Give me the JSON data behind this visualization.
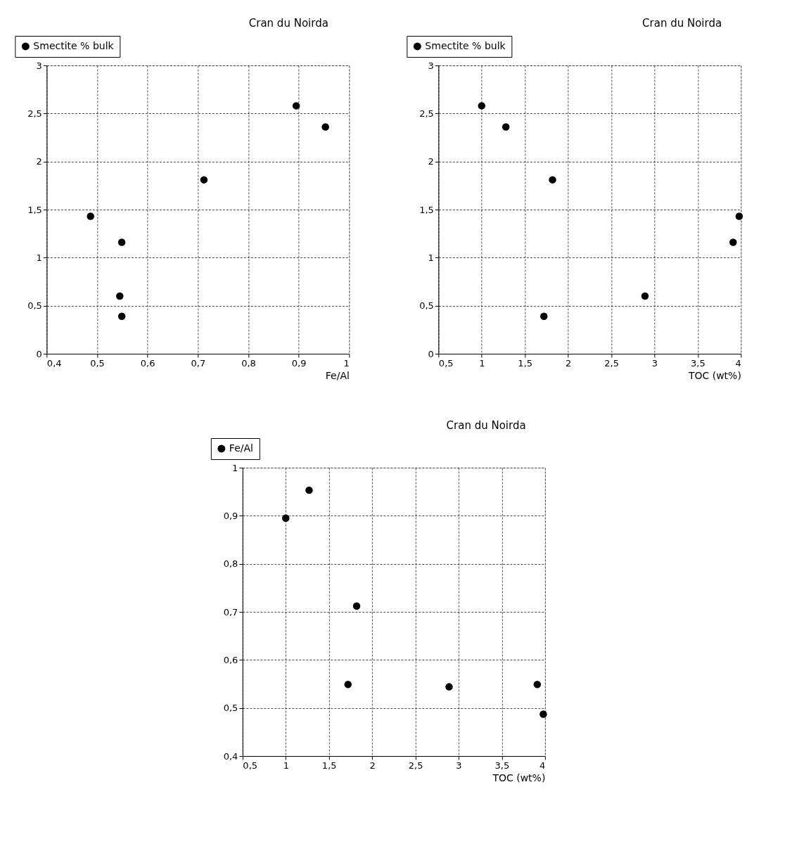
{
  "chart_data": [
    {
      "type": "scatter",
      "title": "Cran du Noirda",
      "xlabel": "Fe/Al",
      "xlim": [
        0.4,
        1
      ],
      "xticks": [
        {
          "value": 0.4,
          "label": "0,4"
        },
        {
          "value": 0.5,
          "label": "0,5"
        },
        {
          "value": 0.6,
          "label": "0,6"
        },
        {
          "value": 0.7,
          "label": "0,7"
        },
        {
          "value": 0.8,
          "label": "0,8"
        },
        {
          "value": 0.9,
          "label": "0,9"
        },
        1
      ],
      "ylim": [
        0,
        3
      ],
      "yticks": [
        0,
        {
          "value": 0.5,
          "label": "0,5"
        },
        1,
        {
          "value": 1.5,
          "label": "1,5"
        },
        2,
        {
          "value": 2.5,
          "label": "2,5"
        },
        3
      ],
      "grid": true,
      "legend": "top left",
      "marker": "circle",
      "series": [
        {
          "name": "Smectite % bulk",
          "color": "#000000",
          "x": [
            0.487,
            0.549,
            0.545,
            0.549,
            0.712,
            0.895,
            0.953
          ],
          "values": [
            1.43,
            1.16,
            0.6,
            0.39,
            1.81,
            2.58,
            2.36
          ]
        }
      ]
    },
    {
      "type": "scatter",
      "title": "Cran du Noirda",
      "xlabel": "TOC (wt%)",
      "xlim": [
        0.5,
        4
      ],
      "xticks": [
        {
          "value": 0.5,
          "label": "0,5"
        },
        1,
        {
          "value": 1.5,
          "label": "1,5"
        },
        2,
        {
          "value": 2.5,
          "label": "2,5"
        },
        3,
        {
          "value": 3.5,
          "label": "3,5"
        },
        4
      ],
      "ylim": [
        0,
        3
      ],
      "yticks": [
        0,
        {
          "value": 0.5,
          "label": "0,5"
        },
        1,
        {
          "value": 1.5,
          "label": "1,5"
        },
        2,
        {
          "value": 2.5,
          "label": "2,5"
        },
        3
      ],
      "grid": true,
      "legend": "top left",
      "marker": "circle",
      "series": [
        {
          "name": "Smectite % bulk",
          "color": "#000000",
          "x": [
            1.0,
            1.28,
            1.82,
            3.98,
            3.91,
            2.89,
            1.72
          ],
          "values": [
            2.58,
            2.36,
            1.81,
            1.43,
            1.16,
            0.6,
            0.39
          ]
        }
      ]
    },
    {
      "type": "scatter",
      "title": "Cran du Noirda",
      "xlabel": "TOC (wt%)",
      "xlim": [
        0.5,
        4
      ],
      "xticks": [
        {
          "value": 0.5,
          "label": "0,5"
        },
        1,
        {
          "value": 1.5,
          "label": "1,5"
        },
        2,
        {
          "value": 2.5,
          "label": "2,5"
        },
        3,
        {
          "value": 3.5,
          "label": "3,5"
        },
        4
      ],
      "ylim": [
        0.4,
        1
      ],
      "yticks": [
        {
          "value": 0.4,
          "label": "0,4"
        },
        {
          "value": 0.5,
          "label": "0,5"
        },
        {
          "value": 0.6,
          "label": "0,6"
        },
        {
          "value": 0.7,
          "label": "0,7"
        },
        {
          "value": 0.8,
          "label": "0,8"
        },
        {
          "value": 0.9,
          "label": "0,9"
        },
        1
      ],
      "grid": true,
      "legend": "top left",
      "marker": "circle",
      "series": [
        {
          "name": "Fe/Al",
          "color": "#000000",
          "x": [
            1.0,
            1.27,
            1.82,
            1.72,
            2.89,
            3.91,
            3.98
          ],
          "values": [
            0.895,
            0.953,
            0.712,
            0.549,
            0.544,
            0.549,
            0.487
          ]
        }
      ]
    }
  ]
}
